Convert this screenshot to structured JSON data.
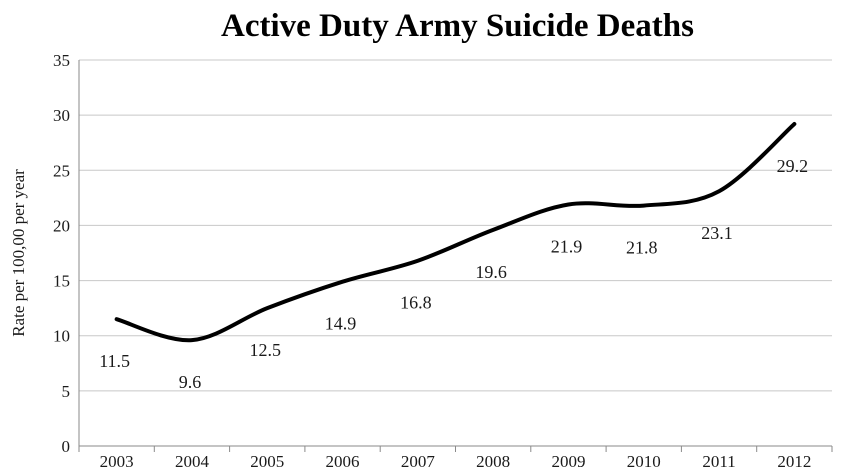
{
  "chart_data": {
    "type": "line",
    "title": "Active Duty Army Suicide Deaths",
    "xlabel": "",
    "ylabel": "Rate per 100,00 per year",
    "categories": [
      "2003",
      "2004",
      "2005",
      "2006",
      "2007",
      "2008",
      "2009",
      "2010",
      "2011",
      "2012"
    ],
    "series": [
      {
        "values": [
          11.5,
          9.6,
          12.5,
          14.9,
          16.8,
          19.6,
          21.9,
          21.8,
          23.1,
          29.2
        ],
        "data_labels": [
          "11.5",
          "9.6",
          "12.5",
          "14.9",
          "16.8",
          "19.6",
          "21.9",
          "21.8",
          "23.1",
          "29.2"
        ]
      }
    ],
    "ylim": [
      0,
      35
    ],
    "yticks": [
      0,
      5,
      10,
      15,
      20,
      25,
      30,
      35
    ],
    "grid": true,
    "smooth": true,
    "line_color": "#000000"
  }
}
